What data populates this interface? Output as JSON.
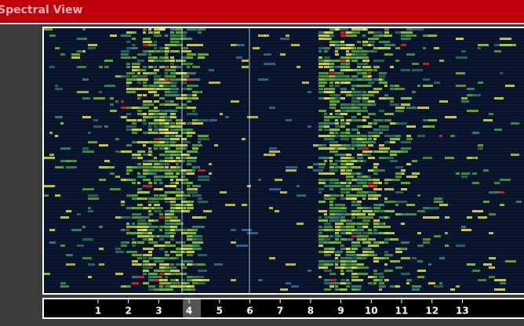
{
  "header": {
    "title": "Spectral View"
  },
  "channel_bar": {
    "labels": [
      "1",
      "2",
      "3",
      "4",
      "5",
      "6",
      "7",
      "8",
      "9",
      "10",
      "11",
      "12",
      "13"
    ],
    "active": 5,
    "active_color": "#f0d020",
    "marked": 3
  }
}
